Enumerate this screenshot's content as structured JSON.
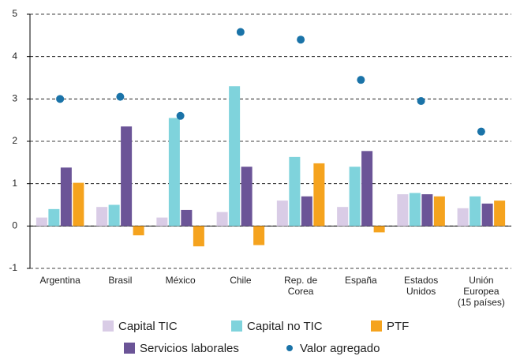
{
  "chart_data": {
    "type": "bar",
    "categories": [
      [
        "Argentina"
      ],
      [
        "Brasil"
      ],
      [
        "México"
      ],
      [
        "Chile"
      ],
      [
        "Rep. de",
        "Corea"
      ],
      [
        "España"
      ],
      [
        "Estados",
        "Unidos"
      ],
      [
        "Unión",
        "Europea",
        "(15 países)"
      ]
    ],
    "series": [
      {
        "name": "Capital TIC",
        "color": "#d9cce6",
        "values": [
          0.2,
          0.45,
          0.2,
          0.33,
          0.6,
          0.45,
          0.75,
          0.42
        ]
      },
      {
        "name": "Capital no TIC",
        "color": "#7fd3dc",
        "values": [
          0.4,
          0.5,
          2.55,
          3.3,
          1.63,
          1.4,
          0.78,
          0.7
        ]
      },
      {
        "name": "Servicios laborales",
        "color": "#6b5497",
        "values": [
          1.38,
          2.35,
          0.38,
          1.4,
          0.7,
          1.77,
          0.75,
          0.53
        ]
      },
      {
        "name": "PTF",
        "color": "#f5a31e",
        "values": [
          1.02,
          -0.22,
          -0.48,
          -0.45,
          1.48,
          -0.15,
          0.7,
          0.6
        ]
      },
      {
        "name": "Valor agregado",
        "type": "scatter",
        "color": "#1a73a8",
        "values": [
          3.0,
          3.05,
          2.6,
          4.58,
          4.4,
          3.45,
          2.95,
          2.23
        ]
      }
    ],
    "ylim": [
      -1,
      5
    ],
    "yticks": [
      -1,
      0,
      1,
      2,
      3,
      4,
      5
    ],
    "grid": true
  }
}
